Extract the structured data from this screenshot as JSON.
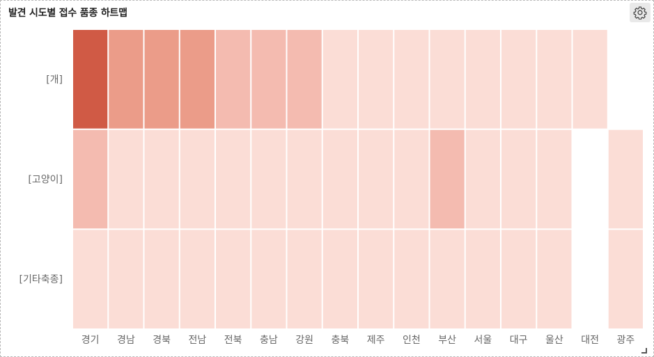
{
  "panel": {
    "title": "발견 시도별 접수 품종 하트맵",
    "settings_icon": "gear-icon",
    "resize_icon": "resize-handle-icon"
  },
  "chart_data": {
    "type": "heatmap",
    "title": "발견 시도별 접수 품종 하트맵",
    "x_categories": [
      "경기",
      "경남",
      "경북",
      "전남",
      "전북",
      "충남",
      "강원",
      "충북",
      "제주",
      "인천",
      "부산",
      "서울",
      "대구",
      "울산",
      "대전",
      "광주"
    ],
    "y_categories": [
      "[개]",
      "[고양이]",
      "[기타축종]"
    ],
    "intensity": [
      [
        1.0,
        0.5,
        0.5,
        0.5,
        0.3,
        0.3,
        0.3,
        0.0,
        0.0,
        0.0,
        0.0,
        0.0,
        0.0,
        0.0,
        0.0,
        null
      ],
      [
        0.3,
        0.0,
        0.0,
        0.0,
        0.0,
        0.0,
        0.0,
        0.0,
        0.0,
        0.0,
        0.3,
        0.0,
        0.0,
        0.0,
        null,
        0.0
      ],
      [
        0.0,
        0.0,
        0.0,
        0.0,
        0.0,
        0.0,
        0.0,
        0.0,
        0.0,
        0.0,
        0.0,
        0.0,
        0.0,
        0.0,
        null,
        0.0
      ]
    ],
    "color_scale": [
      "#fbddd6",
      "#f4bbb0",
      "#eb9c89",
      "#d05a45"
    ],
    "legend": "none",
    "grid": false
  }
}
